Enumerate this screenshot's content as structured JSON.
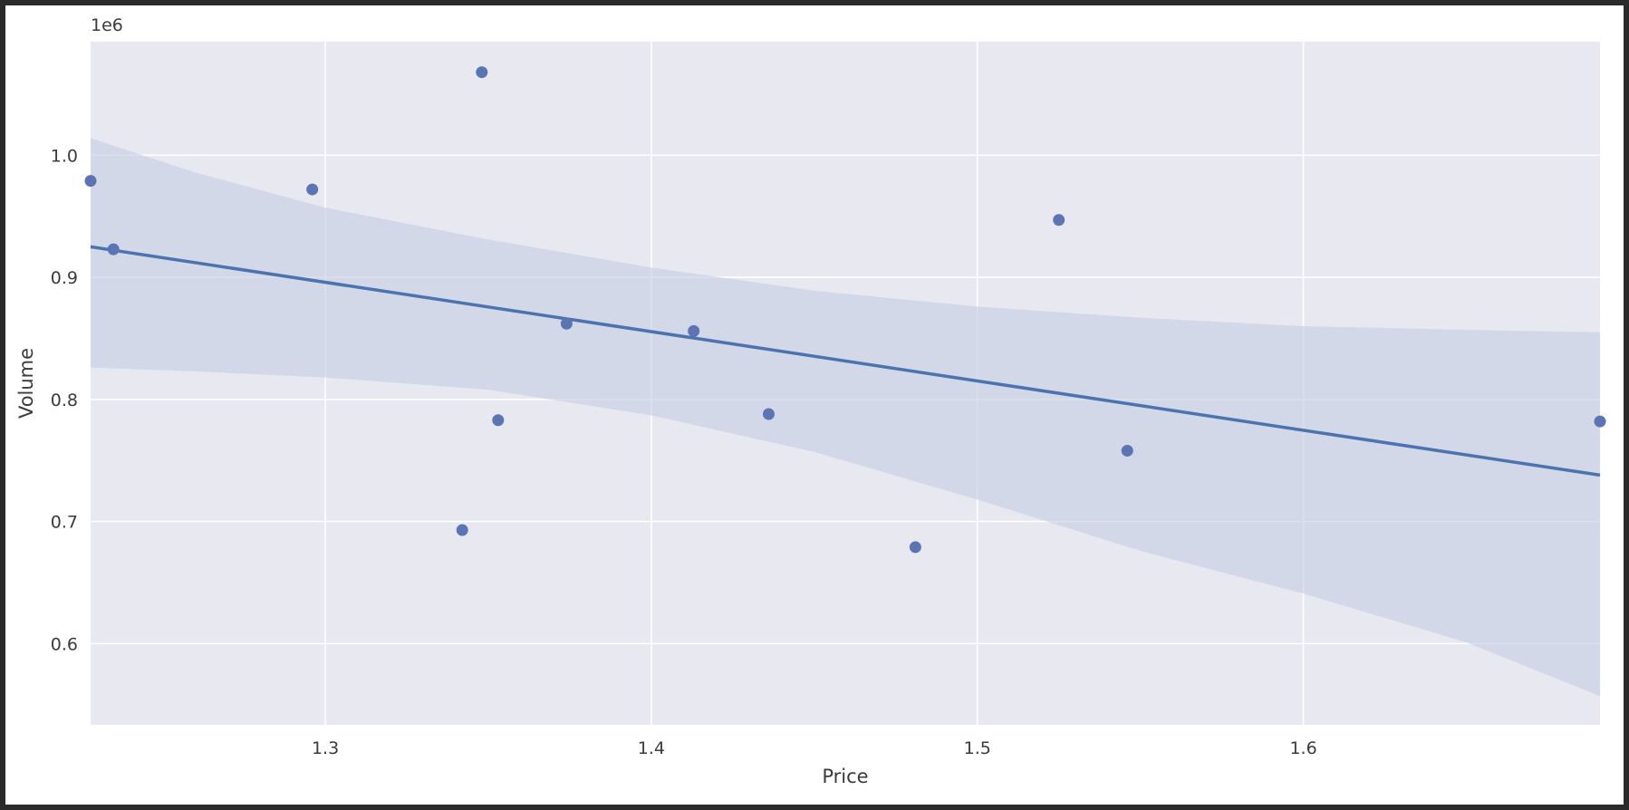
{
  "chart_data": {
    "type": "scatter",
    "title": "",
    "xlabel": "Price",
    "ylabel": "Volume",
    "y_offset_label": "1e6",
    "xlim": [
      1.228,
      1.691
    ],
    "ylim": [
      0.5335,
      1.093
    ],
    "x_ticks": [
      1.3,
      1.4,
      1.5,
      1.6
    ],
    "x_tick_labels": [
      "1.3",
      "1.4",
      "1.5",
      "1.6"
    ],
    "y_ticks": [
      0.6,
      0.7,
      0.8,
      0.9,
      1.0
    ],
    "y_tick_labels": [
      "0.6",
      "0.7",
      "0.8",
      "0.9",
      "1.0"
    ],
    "grid": true,
    "legend": "none",
    "style": {
      "background": "#e8e8f1",
      "grid_color": "#ffffff",
      "point_color": "#5a74b4",
      "line_color": "#4c72b0",
      "band_color": "#c7cfe4"
    },
    "points": {
      "x": [
        1.228,
        1.235,
        1.296,
        1.342,
        1.348,
        1.353,
        1.374,
        1.413,
        1.436,
        1.481,
        1.525,
        1.546,
        1.691
      ],
      "y": [
        0.979,
        0.923,
        0.972,
        0.693,
        1.068,
        0.783,
        0.862,
        0.856,
        0.788,
        0.679,
        0.947,
        0.758,
        0.782
      ]
    },
    "regression_line": {
      "x": [
        1.228,
        1.691
      ],
      "y": [
        0.925,
        0.738
      ]
    },
    "confidence_band": {
      "x": [
        1.228,
        1.26,
        1.3,
        1.35,
        1.4,
        1.45,
        1.5,
        1.55,
        1.6,
        1.65,
        1.691
      ],
      "upper": [
        1.014,
        0.986,
        0.957,
        0.931,
        0.908,
        0.889,
        0.876,
        0.867,
        0.86,
        0.857,
        0.855
      ],
      "lower": [
        0.826,
        0.823,
        0.818,
        0.808,
        0.787,
        0.757,
        0.718,
        0.676,
        0.641,
        0.601,
        0.557
      ]
    }
  }
}
